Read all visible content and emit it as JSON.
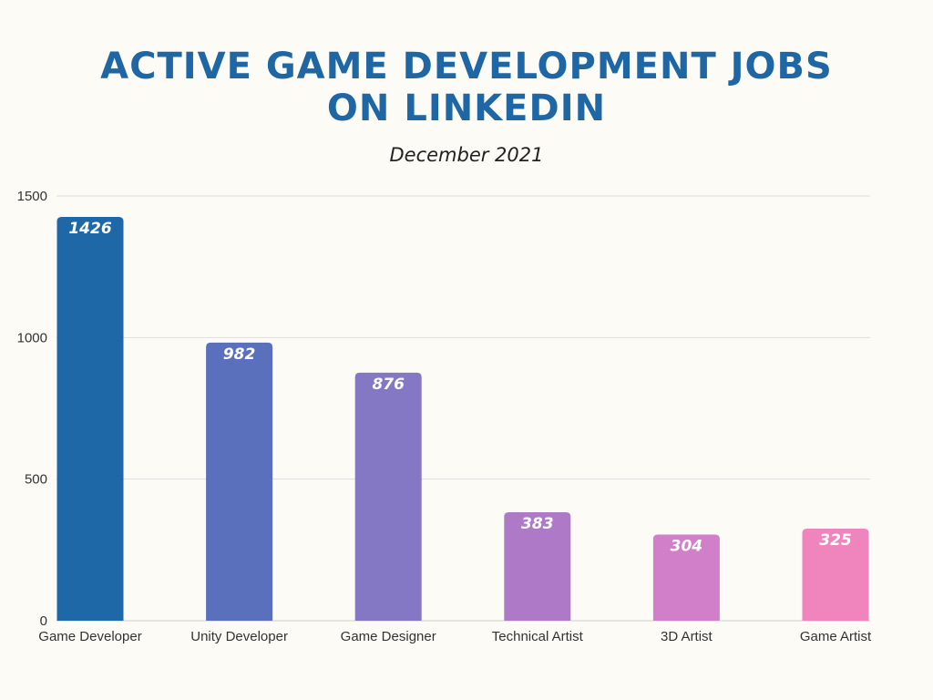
{
  "chart_data": {
    "type": "bar",
    "title_lines": [
      "ACTIVE GAME DEVELOPMENT JOBS",
      "ON LINKEDIN"
    ],
    "subtitle": "December 2021",
    "xlabel": "",
    "ylabel": "",
    "categories": [
      "Game Developer",
      "Unity Developer",
      "Game Designer",
      "Technical Artist",
      "3D Artist",
      "Game Artist"
    ],
    "values": [
      1426,
      982,
      876,
      383,
      304,
      325
    ],
    "bar_colors": [
      "#1f68a8",
      "#5a70bc",
      "#8477c4",
      "#ae7ac8",
      "#d07fc8",
      "#f085be"
    ],
    "ylim": [
      0,
      1500
    ],
    "yticks": [
      0,
      500,
      1000,
      1500
    ],
    "grid": true,
    "legend": "none"
  },
  "colors": {
    "title": "#1e66a4",
    "background": "#fdfbf6",
    "gridline": "#dddddd"
  }
}
